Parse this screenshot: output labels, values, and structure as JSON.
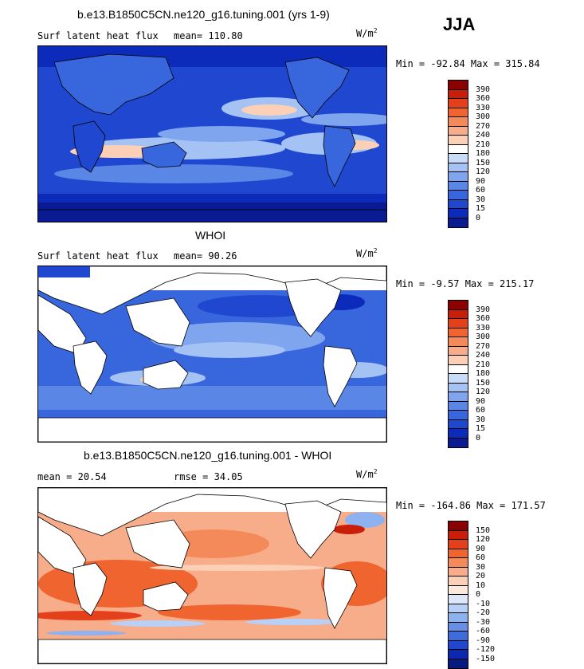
{
  "season": "JJA",
  "units_base": "W/m",
  "units_exp": "2",
  "panels": [
    {
      "title": "b.e13.B1850C5CN.ne120_g16.tuning.001 (yrs 1-9)",
      "variable": "Surf latent heat flux",
      "stat_label": "mean=",
      "stat_value": "110.80",
      "minmax": "Min = -92.84 Max = 315.84",
      "colorbar_labels": [
        "390",
        "360",
        "330",
        "300",
        "270",
        "240",
        "210",
        "180",
        "150",
        "120",
        "90",
        "60",
        "30",
        "15",
        "0"
      ],
      "colors": [
        "#8b0000",
        "#c81e0a",
        "#e4401c",
        "#f0642f",
        "#f48a5a",
        "#f8ad8a",
        "#fbd0b6",
        "#ffffff",
        "#c8dcf8",
        "#a4c2f4",
        "#7fa5ee",
        "#5a86e6",
        "#3866dc",
        "#1f47cf",
        "#0c2bba",
        "#0a1a90"
      ]
    },
    {
      "title": "WHOI",
      "variable": "Surf latent heat flux",
      "stat_label": "mean=",
      "stat_value": "90.26",
      "minmax": "Min =  -9.57 Max = 215.17",
      "colorbar_labels": [
        "390",
        "360",
        "330",
        "300",
        "270",
        "240",
        "210",
        "180",
        "150",
        "120",
        "90",
        "60",
        "30",
        "15",
        "0"
      ],
      "colors": [
        "#8b0000",
        "#c81e0a",
        "#e4401c",
        "#f0642f",
        "#f48a5a",
        "#f8ad8a",
        "#fbd0b6",
        "#ffffff",
        "#c8dcf8",
        "#a4c2f4",
        "#7fa5ee",
        "#5a86e6",
        "#3866dc",
        "#1f47cf",
        "#0c2bba",
        "#0a1a90"
      ]
    },
    {
      "title": "b.e13.B1850C5CN.ne120_g16.tuning.001 - WHOI",
      "stat_label": "mean =",
      "stat_value": "20.54",
      "rmse_label": "rmse =",
      "rmse_value": "34.05",
      "minmax": "Min = -164.86 Max = 171.57",
      "colorbar_labels": [
        "150",
        "120",
        "90",
        "60",
        "30",
        "20",
        "10",
        "0",
        "-10",
        "-20",
        "-30",
        "-60",
        "-90",
        "-120",
        "-150"
      ],
      "colors": [
        "#8b0000",
        "#c81e0a",
        "#e4401c",
        "#f0642f",
        "#f48a5a",
        "#f8ad8a",
        "#fbd0b6",
        "#fde8dc",
        "#dce8fa",
        "#b8d0f6",
        "#8eb2ef",
        "#6690e6",
        "#3e6cdb",
        "#2047cc",
        "#0c28b0",
        "#081a80"
      ]
    }
  ]
}
